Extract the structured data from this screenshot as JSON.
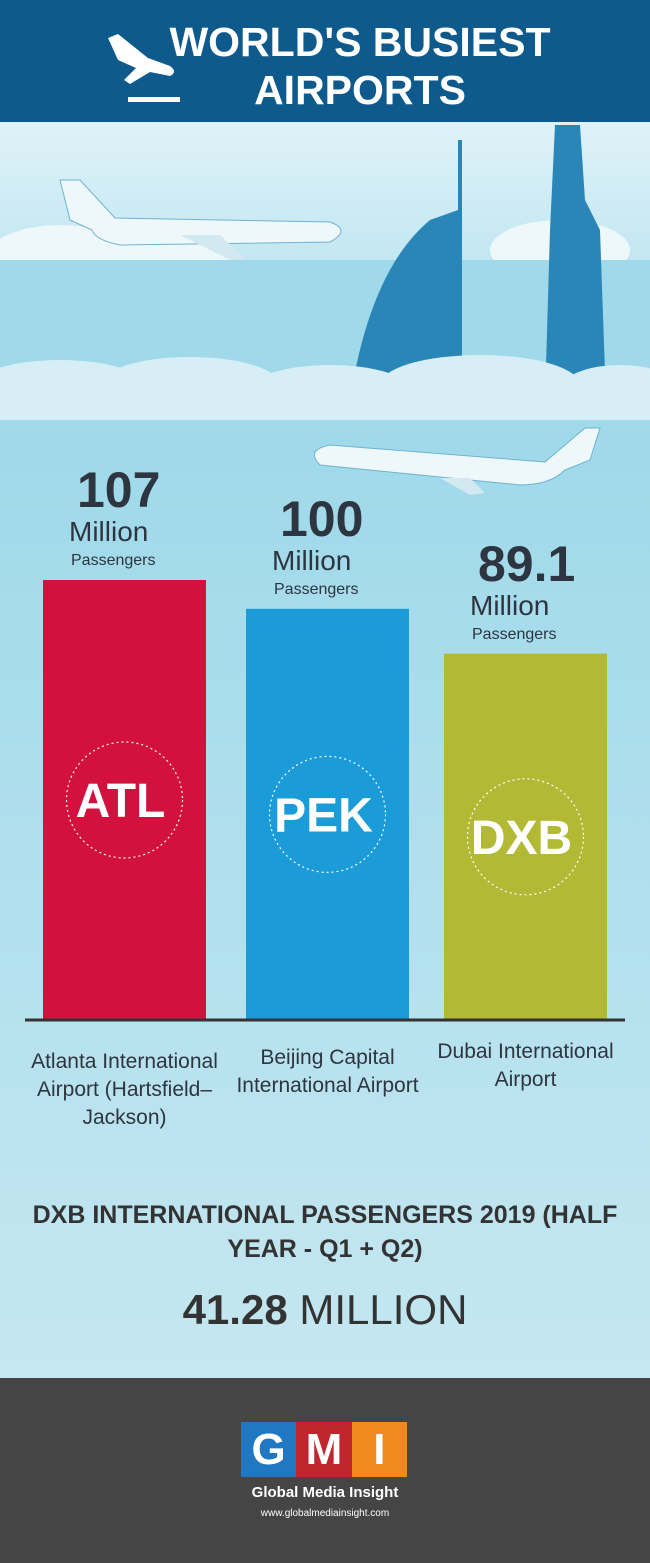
{
  "header": {
    "title": "WORLD'S BUSIEST AIRPORTS"
  },
  "chart_data": {
    "type": "bar",
    "categories": [
      "Atlanta International Airport (Hartsfield–Jackson)",
      "Beijing Capital International Airport",
      "Dubai International Airport"
    ],
    "codes": [
      "ATL",
      "PEK",
      "DXB"
    ],
    "values": [
      107,
      100,
      89.1
    ],
    "colors": [
      "#d3113f",
      "#1b9cd8",
      "#b2ba35"
    ],
    "value_unit": "Million",
    "value_sublabel": "Passengers"
  },
  "highlight": {
    "title": "DXB INTERNATIONAL PASSENGERS 2019 (HALF YEAR - Q1 + Q2)",
    "value": "41.28",
    "unit": "MILLION"
  },
  "footer": {
    "logo": [
      "G",
      "M",
      "I"
    ],
    "name": "Global Media Insight",
    "url": "www.globalmediainsight.com"
  }
}
